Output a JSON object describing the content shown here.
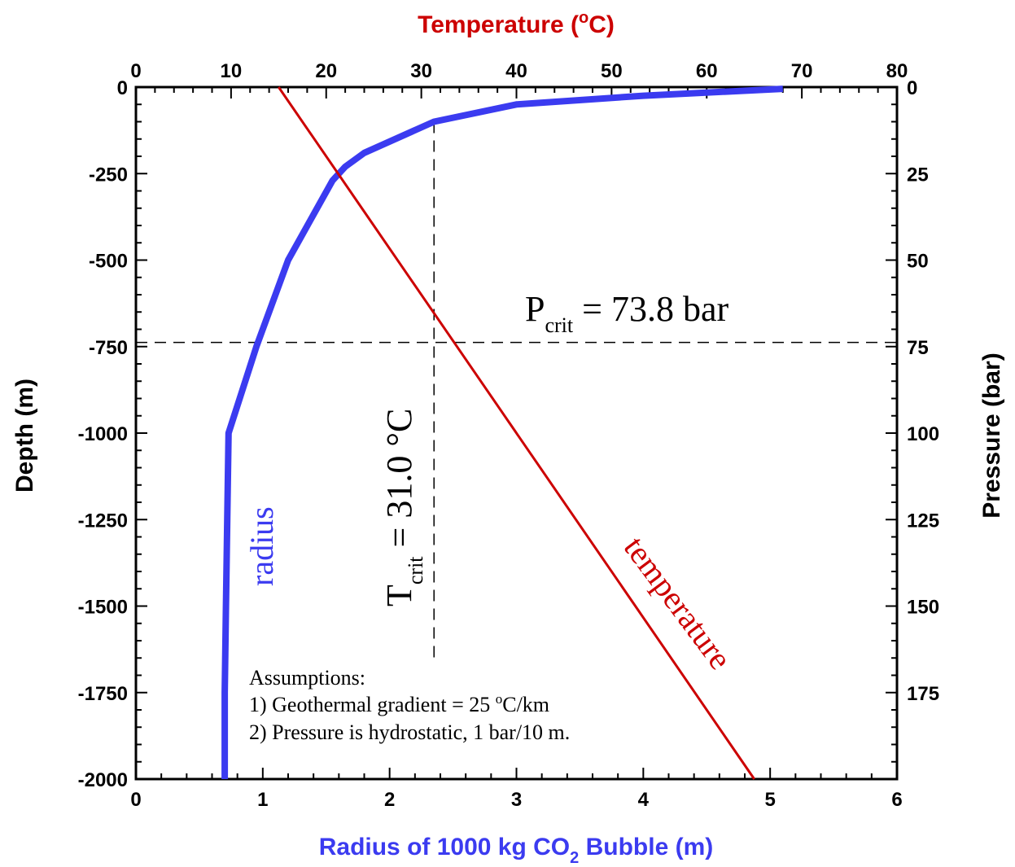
{
  "chart_data": {
    "type": "line",
    "title": "",
    "axes": {
      "bottom": {
        "label_main": "Radius of 1000 kg CO",
        "label_sub": "2",
        "label_tail": " Bubble (m)",
        "range": [
          0,
          6
        ],
        "ticks": [
          "0",
          "1",
          "2",
          "3",
          "4",
          "5",
          "6"
        ],
        "color": "#3b3bf0"
      },
      "top": {
        "label": "Temperature (",
        "label_sup": "o",
        "label_tail": "C)",
        "range": [
          0,
          80
        ],
        "ticks": [
          "0",
          "10",
          "20",
          "30",
          "40",
          "50",
          "60",
          "70",
          "80"
        ],
        "color": "#cc0000"
      },
      "left": {
        "label": "Depth (m)",
        "range": [
          -2000,
          0
        ],
        "ticks": [
          "0",
          "-250",
          "-500",
          "-750",
          "-1000",
          "-1250",
          "-1500",
          "-1750",
          "-2000"
        ]
      },
      "right": {
        "label": "Pressure (bar)",
        "range": [
          200,
          0
        ],
        "ticks": [
          "0",
          "25",
          "50",
          "75",
          "100",
          "125",
          "150",
          "175"
        ]
      }
    },
    "series": [
      {
        "name": "radius",
        "axis": "bottom",
        "color": "#3b3bf0",
        "points": [
          [
            5.1,
            -5
          ],
          [
            4.0,
            -25
          ],
          [
            3.0,
            -50
          ],
          [
            2.35,
            -100
          ],
          [
            1.8,
            -190
          ],
          [
            1.65,
            -230
          ],
          [
            1.55,
            -270
          ],
          [
            1.2,
            -500
          ],
          [
            0.95,
            -750
          ],
          [
            0.73,
            -1000
          ],
          [
            0.72,
            -1250
          ],
          [
            0.71,
            -1500
          ],
          [
            0.7,
            -1750
          ],
          [
            0.7,
            -2000
          ]
        ]
      },
      {
        "name": "temperature",
        "axis": "top",
        "color": "#cc0000",
        "points": [
          [
            15,
            0
          ],
          [
            65,
            -2000
          ]
        ]
      }
    ],
    "reference_lines": [
      {
        "orientation": "horizontal",
        "depth": -738
      },
      {
        "orientation": "vertical",
        "radius": 2.35
      }
    ],
    "annotations": {
      "pcrit": {
        "main": "P",
        "sub": "crit",
        "tail": " = 73.8 bar"
      },
      "tcrit": {
        "main": "T",
        "sub": "crit",
        "tail": " = 31.0 °C"
      },
      "radius_label": "radius",
      "temperature_label": "temperature",
      "assumptions": {
        "heading": "Assumptions:",
        "line1_a": "1)  Geothermal gradient = 25 ",
        "line1_sup": "o",
        "line1_b": "C/km",
        "line2": "2)  Pressure is hydrostatic, 1 bar/10 m."
      }
    }
  }
}
